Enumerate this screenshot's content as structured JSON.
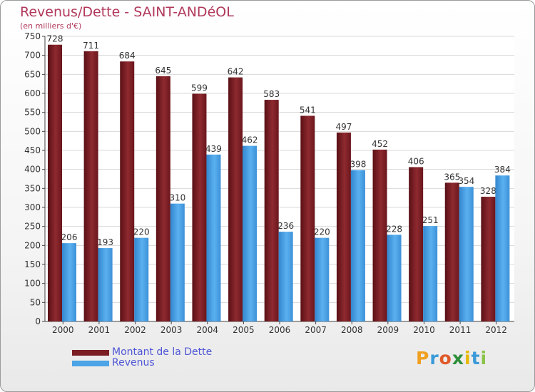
{
  "chart_data": {
    "type": "bar",
    "title": "Revenus/Dette - SAINT-ANDéOL",
    "subtitle": "(en milliers d'€)",
    "categories": [
      "2000",
      "2001",
      "2002",
      "2003",
      "2004",
      "2005",
      "2006",
      "2007",
      "2008",
      "2009",
      "2010",
      "2011",
      "2012"
    ],
    "series": [
      {
        "name": "Montant de la Dette",
        "color": "#7a1e24",
        "values": [
          728,
          711,
          684,
          645,
          599,
          642,
          583,
          541,
          497,
          452,
          406,
          365,
          328
        ]
      },
      {
        "name": "Revenus",
        "color": "#4ca3e6",
        "values": [
          206,
          193,
          220,
          310,
          439,
          462,
          236,
          220,
          398,
          228,
          251,
          354,
          384
        ]
      }
    ],
    "ylim": [
      0,
      750
    ],
    "ytick_step": 50,
    "grid": true,
    "legend": "bottom-left",
    "xlabel": "",
    "ylabel": ""
  },
  "branding": {
    "logo_letters": [
      "P",
      "r",
      "o",
      "x",
      "i",
      "t",
      "i"
    ],
    "logo_colors": [
      "#f0a020",
      "#3a9ad9",
      "#e05a2a",
      "#2d8f3a",
      "#e6b800",
      "#3a9ad9",
      "#8bc34a"
    ]
  }
}
